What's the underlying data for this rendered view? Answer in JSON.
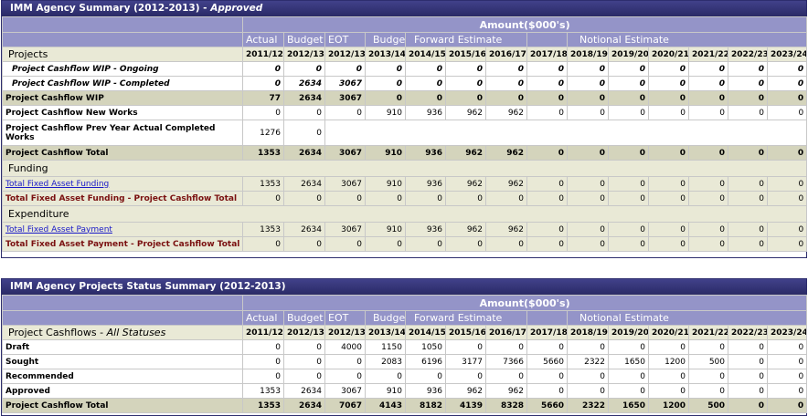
{
  "panel1": {
    "title": "IMM Agency Summary (2012-2013) -",
    "status": "Approved",
    "amount_label": "Amount($000's)",
    "groups": [
      "Actual",
      "Budget",
      "EOT",
      "Budget",
      "Forward Estimate",
      "Notional Estimate"
    ],
    "section_projects": "Projects",
    "years": [
      "2011/12",
      "2012/13",
      "2012/13",
      "2013/14",
      "2014/15",
      "2015/16",
      "2016/17",
      "2017/18",
      "2018/19",
      "2019/20",
      "2020/21",
      "2021/22",
      "2022/23",
      "2023/24"
    ],
    "rows": [
      {
        "label": "Project Cashflow WIP - Ongoing",
        "values": [
          "0",
          "0",
          "0",
          "0",
          "0",
          "0",
          "0",
          "0",
          "0",
          "0",
          "0",
          "0",
          "0",
          "0"
        ]
      },
      {
        "label": "Project Cashflow WIP - Completed",
        "values": [
          "0",
          "2634",
          "3067",
          "0",
          "0",
          "0",
          "0",
          "0",
          "0",
          "0",
          "0",
          "0",
          "0",
          "0"
        ]
      },
      {
        "label": "Project Cashflow WIP",
        "values": [
          "77",
          "2634",
          "3067",
          "0",
          "0",
          "0",
          "0",
          "0",
          "0",
          "0",
          "0",
          "0",
          "0",
          "0"
        ]
      },
      {
        "label": "Project Cashflow New Works",
        "values": [
          "0",
          "0",
          "0",
          "910",
          "936",
          "962",
          "962",
          "0",
          "0",
          "0",
          "0",
          "0",
          "0",
          "0"
        ]
      },
      {
        "label": "Project Cashflow Prev Year Actual Completed Works",
        "values": [
          "1276",
          "0"
        ]
      },
      {
        "label": "Project Cashflow Total",
        "values": [
          "1353",
          "2634",
          "3067",
          "910",
          "936",
          "962",
          "962",
          "0",
          "0",
          "0",
          "0",
          "0",
          "0",
          "0"
        ]
      }
    ],
    "section_funding": "Funding",
    "funding_rows": [
      {
        "label": "Total Fixed Asset Funding",
        "values": [
          "1353",
          "2634",
          "3067",
          "910",
          "936",
          "962",
          "962",
          "0",
          "0",
          "0",
          "0",
          "0",
          "0",
          "0"
        ]
      },
      {
        "label": "Total Fixed Asset Funding - Project Cashflow Total",
        "values": [
          "0",
          "0",
          "0",
          "0",
          "0",
          "0",
          "0",
          "0",
          "0",
          "0",
          "0",
          "0",
          "0",
          "0"
        ]
      }
    ],
    "section_expenditure": "Expenditure",
    "expenditure_rows": [
      {
        "label": "Total Fixed Asset Payment",
        "values": [
          "1353",
          "2634",
          "3067",
          "910",
          "936",
          "962",
          "962",
          "0",
          "0",
          "0",
          "0",
          "0",
          "0",
          "0"
        ]
      },
      {
        "label": "Total Fixed Asset Payment - Project Cashflow Total",
        "values": [
          "0",
          "0",
          "0",
          "0",
          "0",
          "0",
          "0",
          "0",
          "0",
          "0",
          "0",
          "0",
          "0",
          "0"
        ]
      }
    ]
  },
  "panel2": {
    "title": "IMM Agency Projects Status Summary (2012-2013)",
    "amount_label": "Amount($000's)",
    "groups": [
      "Actual",
      "Budget",
      "EOT",
      "Budget",
      "Forward Estimate",
      "Notional Estimate"
    ],
    "section_label": "Project Cashflows -",
    "section_status": "All Statuses",
    "years": [
      "2011/12",
      "2012/13",
      "2012/13",
      "2013/14",
      "2014/15",
      "2015/16",
      "2016/17",
      "2017/18",
      "2018/19",
      "2019/20",
      "2020/21",
      "2021/22",
      "2022/23",
      "2023/24"
    ],
    "rows": [
      {
        "label": "Draft",
        "values": [
          "0",
          "0",
          "4000",
          "1150",
          "1050",
          "0",
          "0",
          "0",
          "0",
          "0",
          "0",
          "0",
          "0",
          "0"
        ]
      },
      {
        "label": "Sought",
        "values": [
          "0",
          "0",
          "0",
          "2083",
          "6196",
          "3177",
          "7366",
          "5660",
          "2322",
          "1650",
          "1200",
          "500",
          "0",
          "0"
        ]
      },
      {
        "label": "Recommended",
        "values": [
          "0",
          "0",
          "0",
          "0",
          "0",
          "0",
          "0",
          "0",
          "0",
          "0",
          "0",
          "0",
          "0",
          "0"
        ]
      },
      {
        "label": "Approved",
        "values": [
          "1353",
          "2634",
          "3067",
          "910",
          "936",
          "962",
          "962",
          "0",
          "0",
          "0",
          "0",
          "0",
          "0",
          "0"
        ]
      },
      {
        "label": "Project Cashflow Total",
        "values": [
          "1353",
          "2634",
          "7067",
          "4143",
          "8182",
          "4139",
          "8328",
          "5660",
          "2322",
          "1650",
          "1200",
          "500",
          "0",
          "0"
        ]
      }
    ]
  }
}
